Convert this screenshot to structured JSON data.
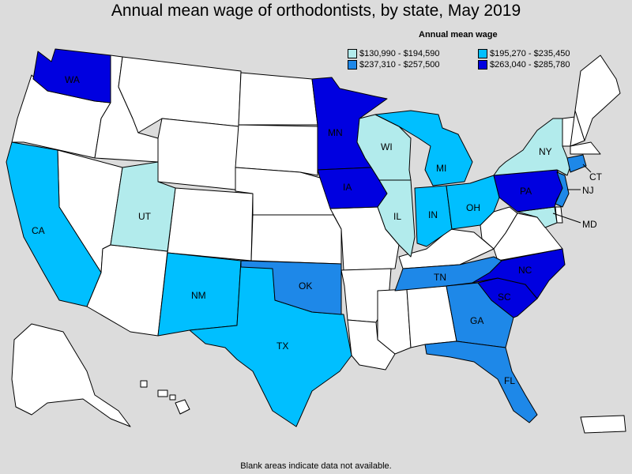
{
  "title": "Annual mean wage of orthodontists, by state, May 2019",
  "legend": {
    "title": "Annual mean wage",
    "items": [
      {
        "label": "$130,990 - $194,590",
        "color": "#b2ebec"
      },
      {
        "label": "$195,270 - $235,450",
        "color": "#00bfff"
      },
      {
        "label": "$237,310 - $257,500",
        "color": "#1e88e8"
      },
      {
        "label": "$263,040 - $285,780",
        "color": "#0000e0"
      }
    ]
  },
  "colors": {
    "no_data": "#ffffff",
    "tier1": "#b2ebec",
    "tier2": "#00bfff",
    "tier3": "#1e88e8",
    "tier4": "#0000e0",
    "background": "#dcdcdc"
  },
  "states": {
    "WA": {
      "label": "WA",
      "tier": 4
    },
    "MN": {
      "label": "MN",
      "tier": 4
    },
    "IA": {
      "label": "IA",
      "tier": 4
    },
    "PA": {
      "label": "PA",
      "tier": 4
    },
    "NC": {
      "label": "NC",
      "tier": 4
    },
    "SC": {
      "label": "SC",
      "tier": 4
    },
    "OK": {
      "label": "OK",
      "tier": 3
    },
    "TN": {
      "label": "TN",
      "tier": 3
    },
    "GA": {
      "label": "GA",
      "tier": 3
    },
    "FL": {
      "label": "FL",
      "tier": 3
    },
    "NJ": {
      "label": "NJ",
      "tier": 3
    },
    "CT": {
      "label": "CT",
      "tier": 3
    },
    "CA": {
      "label": "CA",
      "tier": 2
    },
    "NM": {
      "label": "NM",
      "tier": 2
    },
    "TX": {
      "label": "TX",
      "tier": 2
    },
    "MI": {
      "label": "MI",
      "tier": 2
    },
    "IN": {
      "label": "IN",
      "tier": 2
    },
    "OH": {
      "label": "OH",
      "tier": 2
    },
    "UT": {
      "label": "UT",
      "tier": 1
    },
    "WI": {
      "label": "WI",
      "tier": 1
    },
    "IL": {
      "label": "IL",
      "tier": 1
    },
    "NY": {
      "label": "NY",
      "tier": 1
    },
    "MD": {
      "label": "MD",
      "tier": 1
    }
  },
  "footnote": "Blank areas indicate data not available."
}
